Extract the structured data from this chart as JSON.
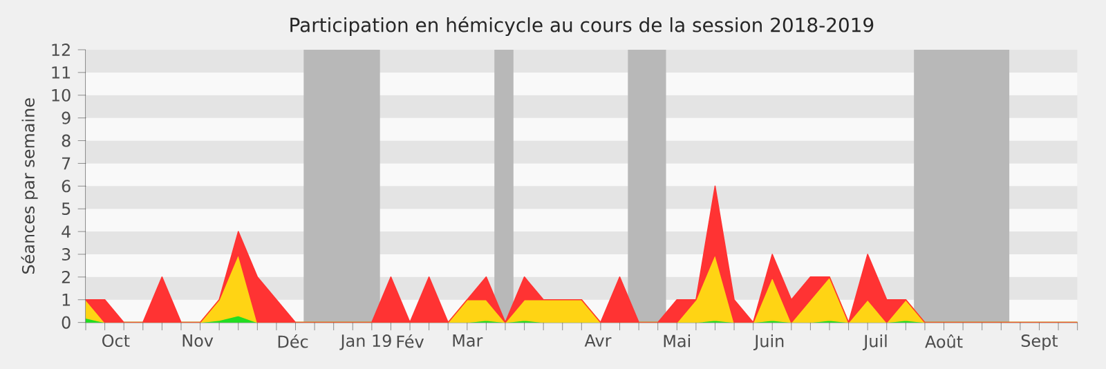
{
  "chart_data": {
    "type": "area",
    "stacked": true,
    "title": "Participation en hémicycle au cours de la session 2018-2019",
    "ylabel": "Séances par semaine",
    "x": [
      "2018-10-14",
      "2018-10-21",
      "2018-10-28",
      "2018-11-04",
      "2018-11-11",
      "2018-11-18",
      "2018-11-25",
      "2018-12-02",
      "2018-12-09",
      "2018-12-16",
      "2018-12-23",
      "2018-12-30",
      "2019-01-06",
      "2019-01-13",
      "2019-01-20",
      "2019-01-27",
      "2019-02-03",
      "2019-02-10",
      "2019-02-17",
      "2019-02-24",
      "2019-03-03",
      "2019-03-10",
      "2019-03-17",
      "2019-03-24",
      "2019-03-31",
      "2019-04-07",
      "2019-04-14",
      "2019-04-21",
      "2019-04-28",
      "2019-05-05",
      "2019-05-12",
      "2019-05-19",
      "2019-05-26",
      "2019-06-02",
      "2019-06-09",
      "2019-06-16",
      "2019-06-23",
      "2019-06-30",
      "2019-07-07",
      "2019-07-14",
      "2019-07-21",
      "2019-07-28",
      "2019-08-04",
      "2019-08-11",
      "2019-08-18",
      "2019-08-25",
      "2019-09-01",
      "2019-09-08",
      "2019-09-15",
      "2019-09-22",
      "2019-09-29",
      "2019-10-06",
      "2019-10-13"
    ],
    "series": [
      {
        "color": "#22dd22",
        "values": [
          0.2,
          0,
          0,
          0,
          0,
          0,
          0,
          0.1,
          0.3,
          0,
          0,
          0,
          0,
          0,
          0,
          0,
          0,
          0,
          0,
          0,
          0,
          0.1,
          0,
          0.1,
          0,
          0,
          0,
          0,
          0,
          0,
          0,
          0,
          0,
          0.1,
          0,
          0,
          0.1,
          0,
          0,
          0.1,
          0,
          0,
          0,
          0.1,
          0,
          0,
          0,
          0,
          0,
          0,
          0,
          0,
          0
        ]
      },
      {
        "color": "#ffd414",
        "values": [
          0.8,
          0,
          0,
          0,
          0,
          0,
          0,
          0.9,
          2.7,
          0,
          0,
          0,
          0,
          0,
          0,
          0,
          0,
          0,
          0,
          0,
          1,
          0.9,
          0,
          0.9,
          1,
          1,
          1,
          0,
          0,
          0,
          0,
          0,
          1,
          2.9,
          0,
          0,
          1.9,
          0,
          1,
          1.9,
          0,
          1,
          0,
          0.9,
          0,
          0,
          0,
          0,
          0,
          0,
          0,
          0,
          0
        ]
      },
      {
        "color": "#ff3333",
        "values": [
          0,
          1,
          0,
          0,
          2,
          0,
          0,
          0,
          1,
          2,
          1,
          0,
          0,
          0,
          0,
          0,
          2,
          0,
          2,
          0,
          0,
          1,
          0,
          1,
          0,
          0,
          0,
          0,
          2,
          0,
          0,
          1,
          0,
          3,
          1,
          0,
          1,
          1,
          1,
          0,
          0,
          2,
          1,
          0,
          0,
          0,
          0,
          0,
          0,
          0,
          0,
          0,
          0
        ]
      }
    ],
    "xlim": [
      "2018-10-14",
      "2019-10-13"
    ],
    "ylim": [
      0,
      12
    ],
    "yticks": [
      0,
      1,
      2,
      3,
      4,
      5,
      6,
      7,
      8,
      9,
      10,
      11,
      12
    ],
    "xticks": [
      {
        "value": "2018-10-14",
        "label": null
      },
      {
        "value": "2018-10-21",
        "label": null
      },
      {
        "value": "2018-10-28",
        "label": null
      },
      {
        "value": "2018-11-04",
        "label": null
      },
      {
        "value": "2018-11-11",
        "label": null
      },
      {
        "value": "2018-11-18",
        "label": null
      },
      {
        "value": "2018-11-25",
        "label": null
      },
      {
        "value": "2018-12-02",
        "label": null
      },
      {
        "value": "2018-12-09",
        "label": null
      },
      {
        "value": "2018-12-16",
        "label": null
      },
      {
        "value": "2018-12-23",
        "label": null
      },
      {
        "value": "2018-12-30",
        "label": null
      },
      {
        "value": "2019-01-06",
        "label": null
      },
      {
        "value": "2019-01-13",
        "label": null
      },
      {
        "value": "2019-01-20",
        "label": null
      },
      {
        "value": "2019-01-27",
        "label": null
      },
      {
        "value": "2019-02-03",
        "label": null
      },
      {
        "value": "2019-02-10",
        "label": null
      },
      {
        "value": "2019-02-17",
        "label": null
      },
      {
        "value": "2019-02-24",
        "label": null
      },
      {
        "value": "2019-03-03",
        "label": null
      },
      {
        "value": "2019-03-10",
        "label": null
      },
      {
        "value": "2019-03-17",
        "label": null
      },
      {
        "value": "2019-03-24",
        "label": null
      },
      {
        "value": "2019-03-31",
        "label": null
      },
      {
        "value": "2019-04-07",
        "label": null
      },
      {
        "value": "2019-04-14",
        "label": null
      },
      {
        "value": "2019-04-21",
        "label": null
      },
      {
        "value": "2019-04-28",
        "label": null
      },
      {
        "value": "2019-05-05",
        "label": null
      },
      {
        "value": "2019-05-12",
        "label": null
      },
      {
        "value": "2019-05-19",
        "label": null
      },
      {
        "value": "2019-05-26",
        "label": null
      },
      {
        "value": "2019-06-02",
        "label": null
      },
      {
        "value": "2019-06-09",
        "label": null
      },
      {
        "value": "2019-06-16",
        "label": null
      },
      {
        "value": "2019-06-23",
        "label": null
      },
      {
        "value": "2019-06-30",
        "label": null
      },
      {
        "value": "2019-07-07",
        "label": null
      },
      {
        "value": "2019-07-14",
        "label": null
      },
      {
        "value": "2019-07-21",
        "label": null
      },
      {
        "value": "2019-07-28",
        "label": null
      },
      {
        "value": "2019-08-04",
        "label": null
      },
      {
        "value": "2019-08-11",
        "label": null
      },
      {
        "value": "2019-08-18",
        "label": null
      },
      {
        "value": "2019-08-25",
        "label": null
      },
      {
        "value": "2019-09-01",
        "label": null
      },
      {
        "value": "2019-09-08",
        "label": null
      },
      {
        "value": "2019-09-15",
        "label": null
      },
      {
        "value": "2019-09-22",
        "label": null
      },
      {
        "value": "2019-09-29",
        "label": null
      },
      {
        "value": "2019-10-06",
        "label": null
      },
      {
        "value": "2019-10-13",
        "label": null
      },
      {
        "value": "2018-10-25",
        "label": "Oct"
      },
      {
        "value": "2018-11-24",
        "label": "Nov"
      },
      {
        "value": "2018-12-29",
        "label": "Déc"
      },
      {
        "value": "2019-01-25",
        "label": "Jan 19"
      },
      {
        "value": "2019-02-10",
        "label": "Fév"
      },
      {
        "value": "2019-03-03",
        "label": "Mar"
      },
      {
        "value": "2019-04-20",
        "label": "Avr"
      },
      {
        "value": "2019-05-19",
        "label": "Mai"
      },
      {
        "value": "2019-06-22",
        "label": "Juin"
      },
      {
        "value": "2019-07-31",
        "label": "Juil"
      },
      {
        "value": "2019-08-25",
        "label": "Août"
      },
      {
        "value": "2019-09-29",
        "label": "Sept"
      }
    ],
    "bands": [
      {
        "axis": "x",
        "from": "2019-01-02",
        "to": "2019-01-30",
        "color": "#b8b8b8"
      },
      {
        "axis": "x",
        "from": "2019-03-13",
        "to": "2019-03-20",
        "color": "#b8b8b8"
      },
      {
        "axis": "x",
        "from": "2019-05-01",
        "to": "2019-05-15",
        "color": "#b8b8b8"
      },
      {
        "axis": "x",
        "from": "2019-08-14",
        "to": "2019-09-18",
        "color": "#b8b8b8"
      }
    ]
  }
}
